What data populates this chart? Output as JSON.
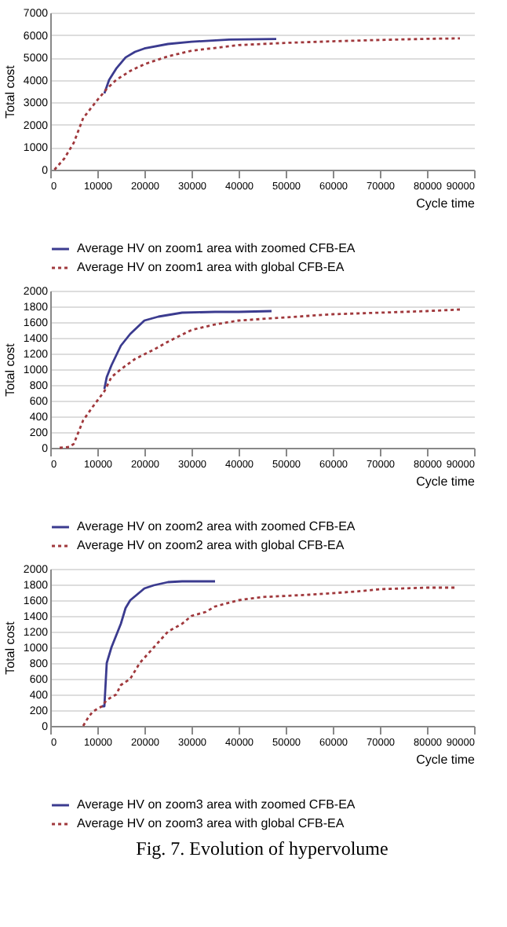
{
  "chart_data": [
    {
      "type": "line",
      "ylabel": "Total cost",
      "xlabel": "Cycle time",
      "xlim": [
        0,
        90000
      ],
      "xticks": [
        0,
        10000,
        20000,
        30000,
        40000,
        50000,
        60000,
        70000,
        80000,
        90000
      ],
      "ylim": [
        0,
        7000
      ],
      "yticks": [
        0,
        1000,
        2000,
        3000,
        4000,
        5000,
        6000,
        7000
      ],
      "grid": "y",
      "legend": "bottom",
      "marker": "none",
      "series": [
        {
          "name": "Average HV on zoom1 area with zoomed CFB-EA",
          "color": "#3b3b8f",
          "line_style": "solid",
          "x": [
            11500,
            12500,
            14000,
            16000,
            18000,
            20000,
            25000,
            30000,
            38000,
            48000
          ],
          "values": [
            3400,
            4000,
            4500,
            5000,
            5250,
            5400,
            5600,
            5700,
            5800,
            5820
          ]
        },
        {
          "name": "Average HV on zoom1 area with global CFB-EA",
          "color": "#a0383c",
          "line_style": "dotted",
          "x": [
            900,
            3000,
            5000,
            7000,
            10000,
            12000,
            14000,
            17000,
            20000,
            25000,
            30000,
            40000,
            50000,
            60000,
            70000,
            80000,
            87000
          ],
          "values": [
            0,
            500,
            1200,
            2300,
            3100,
            3600,
            4000,
            4400,
            4700,
            5050,
            5300,
            5550,
            5650,
            5720,
            5780,
            5830,
            5850
          ]
        }
      ]
    },
    {
      "type": "line",
      "ylabel": "Total cost",
      "xlabel": "Cycle time",
      "xlim": [
        0,
        90000
      ],
      "xticks": [
        0,
        10000,
        20000,
        30000,
        40000,
        50000,
        60000,
        70000,
        80000,
        90000
      ],
      "ylim": [
        0,
        2000
      ],
      "yticks": [
        0,
        200,
        400,
        600,
        800,
        1000,
        1200,
        1400,
        1600,
        1800,
        2000
      ],
      "grid": "y",
      "legend": "bottom",
      "marker": "none",
      "series": [
        {
          "name": "Average HV on zoom2 area with zoomed CFB-EA",
          "color": "#3b3b8f",
          "line_style": "solid",
          "x": [
            11500,
            12000,
            13000,
            15000,
            17000,
            20000,
            23000,
            28000,
            35000,
            40000,
            47000
          ],
          "values": [
            750,
            900,
            1050,
            1300,
            1450,
            1620,
            1670,
            1720,
            1730,
            1730,
            1740
          ]
        },
        {
          "name": "Average HV on zoom2 area with global CFB-EA",
          "color": "#a0383c",
          "line_style": "dotted",
          "x": [
            2000,
            4000,
            5000,
            6000,
            7000,
            9000,
            11500,
            13000,
            15000,
            18000,
            22000,
            25000,
            30000,
            35000,
            40000,
            50000,
            60000,
            70000,
            80000,
            87000
          ],
          "values": [
            0,
            10,
            50,
            200,
            350,
            520,
            720,
            900,
            1000,
            1130,
            1250,
            1350,
            1500,
            1570,
            1620,
            1660,
            1700,
            1720,
            1740,
            1760
          ]
        }
      ]
    },
    {
      "type": "line",
      "ylabel": "Total cost",
      "xlabel": "Cycle time",
      "xlim": [
        0,
        90000
      ],
      "xticks": [
        0,
        10000,
        20000,
        30000,
        40000,
        50000,
        60000,
        70000,
        80000,
        90000
      ],
      "ylim": [
        0,
        2000
      ],
      "yticks": [
        0,
        200,
        400,
        600,
        800,
        1000,
        1200,
        1400,
        1600,
        1800,
        2000
      ],
      "grid": "y",
      "legend": "bottom",
      "marker": "none",
      "annotations": [
        "Fig. 7. Evolution of hypervolume"
      ],
      "series": [
        {
          "name": "Average HV on zoom3 area with zoomed CFB-EA",
          "color": "#3b3b8f",
          "line_style": "solid",
          "x": [
            11000,
            11500,
            12000,
            13000,
            15000,
            16000,
            17000,
            20000,
            22000,
            25000,
            28000,
            35000
          ],
          "values": [
            250,
            250,
            800,
            1000,
            1300,
            1500,
            1600,
            1750,
            1790,
            1830,
            1840,
            1840
          ]
        },
        {
          "name": "Average HV on zoom3 area with global CFB-EA",
          "color": "#a0383c",
          "line_style": "dotted",
          "x": [
            7000,
            8000,
            9000,
            11000,
            12000,
            14000,
            15000,
            17000,
            19000,
            22000,
            25000,
            28000,
            30000,
            33000,
            35000,
            40000,
            45000,
            55000,
            65000,
            70000,
            80000,
            86000
          ],
          "values": [
            0,
            100,
            180,
            250,
            330,
            400,
            520,
            600,
            800,
            1000,
            1200,
            1300,
            1400,
            1450,
            1520,
            1600,
            1640,
            1670,
            1710,
            1740,
            1760,
            1760
          ]
        }
      ]
    }
  ]
}
